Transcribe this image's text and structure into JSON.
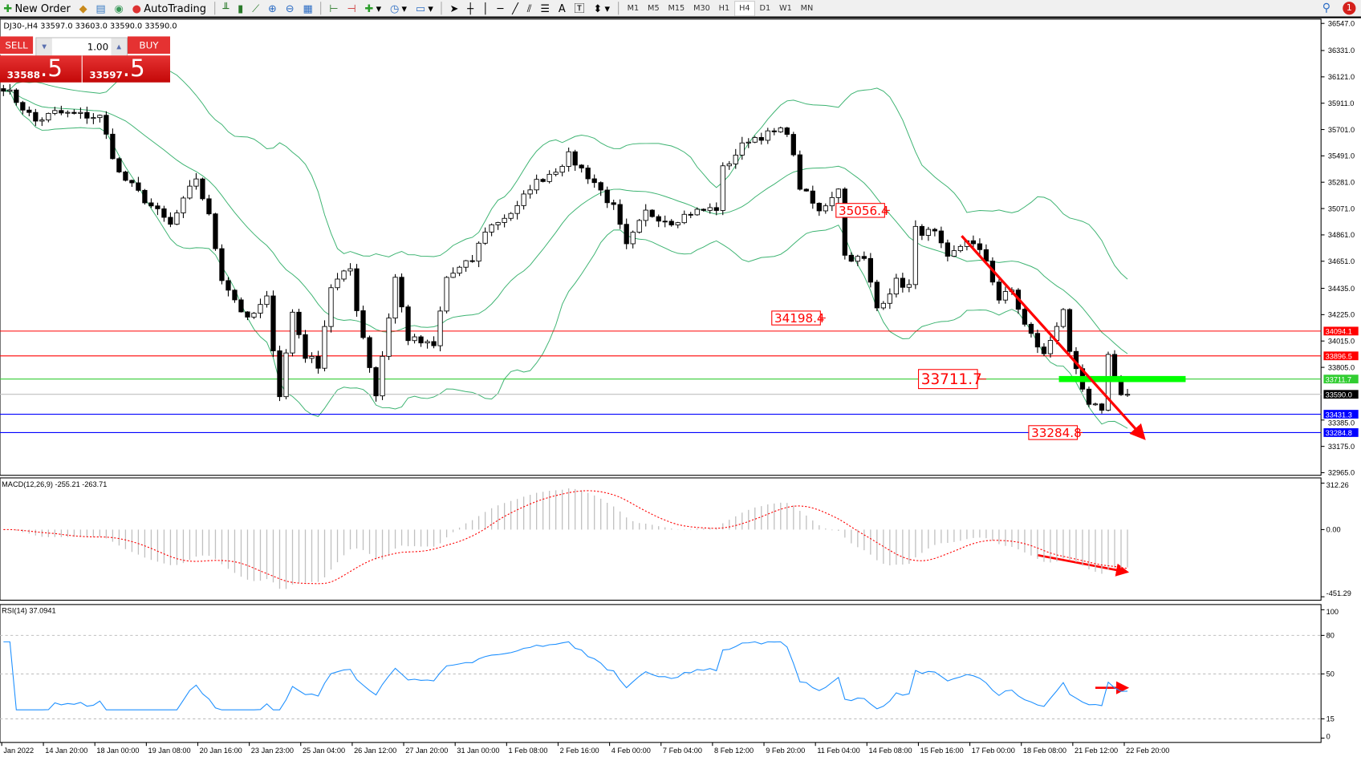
{
  "toolbar": {
    "new_order": "New Order",
    "autotrading": "AutoTrading",
    "timeframes": [
      "M1",
      "M5",
      "M15",
      "M30",
      "H1",
      "H4",
      "D1",
      "W1",
      "MN"
    ],
    "active_timeframe": "H4",
    "notification_count": "1"
  },
  "chart": {
    "info": "DJ30-,H4  33597.0 33603.0 33590.0 33590.0"
  },
  "trade_panel": {
    "sell_label": "SELL",
    "buy_label": "BUY",
    "lot": "1.00",
    "bid_main": "33588",
    "bid_frac": ".5",
    "ask_main": "33597",
    "ask_frac": ".5"
  },
  "price_axis": {
    "ticks": [
      "36547.0",
      "36331.0",
      "36121.0",
      "35911.0",
      "35701.0",
      "35491.0",
      "35281.0",
      "35071.0",
      "34861.0",
      "34651.0",
      "34435.0",
      "34225.0",
      "34015.0",
      "33805.0",
      "33385.0",
      "33175.0",
      "32965.0"
    ]
  },
  "hlines": [
    {
      "price": 34094.1,
      "label": "34094.1",
      "color": "#ff0000"
    },
    {
      "price": 33896.5,
      "label": "33896.5",
      "color": "#ff0000"
    },
    {
      "price": 33711.7,
      "label": "33711.7",
      "color": "#32cd32"
    },
    {
      "price": 33590.0,
      "label": "33590.0",
      "color": "#000000"
    },
    {
      "price": 33431.3,
      "label": "33431.3",
      "color": "#0000ff"
    },
    {
      "price": 33284.8,
      "label": "33284.8",
      "color": "#0000ff"
    }
  ],
  "annotations": [
    {
      "label": "35056.4",
      "price": 35056.4,
      "bar": 138
    },
    {
      "label": "34198.4",
      "price": 34198.4,
      "bar": 128
    },
    {
      "label": "33711.7",
      "price": 33711.7,
      "bar": 153
    },
    {
      "label": "33284.8",
      "price": 33284.8,
      "bar": 168
    }
  ],
  "time_axis": [
    "Jan 2022",
    "14 Jan 20:00",
    "18 Jan 00:00",
    "19 Jan 08:00",
    "20 Jan 16:00",
    "23 Jan 23:00",
    "25 Jan 04:00",
    "26 Jan 12:00",
    "27 Jan 20:00",
    "31 Jan 00:00",
    "1 Feb 08:00",
    "2 Feb 16:00",
    "4 Feb 00:00",
    "7 Feb 04:00",
    "8 Feb 12:00",
    "9 Feb 20:00",
    "11 Feb 04:00",
    "14 Feb 08:00",
    "15 Feb 16:00",
    "17 Feb 00:00",
    "18 Feb 08:00",
    "21 Feb 12:00",
    "22 Feb 20:00"
  ],
  "macd": {
    "label": "MACD(12,26,9) -255.21 -263.71",
    "ticks": [
      "312.26",
      "0.00",
      "-451.29"
    ],
    "max": 312.26,
    "min": -451.29
  },
  "rsi": {
    "label": "RSI(14) 37.0941",
    "ticks": [
      "100",
      "80",
      "50",
      "15",
      "0"
    ],
    "levels": [
      80,
      50,
      15
    ]
  },
  "colors": {
    "bands": "#3cb371",
    "signal": "#ff0000",
    "rsi": "#1e90ff",
    "histogram": "#c0c0c0",
    "arrow": "#ff0000",
    "zone": "#00ff00"
  },
  "chart_data": {
    "type": "candlestick",
    "symbol": "DJ30-",
    "timeframe": "H4",
    "ylim": [
      32965.0,
      36547.0
    ],
    "close_path": [
      [
        0,
        36042
      ],
      [
        5,
        35766
      ],
      [
        8,
        35835
      ],
      [
        15,
        35800
      ],
      [
        18,
        35350
      ],
      [
        22,
        35143
      ],
      [
        26,
        34936
      ],
      [
        30,
        35316
      ],
      [
        32,
        35005
      ],
      [
        34,
        34521
      ],
      [
        38,
        34175
      ],
      [
        41,
        34348
      ],
      [
        43,
        33587
      ],
      [
        45,
        34244
      ],
      [
        47,
        33898
      ],
      [
        49,
        33829
      ],
      [
        51,
        34451
      ],
      [
        54,
        34590
      ],
      [
        55,
        34280
      ],
      [
        58,
        33587
      ],
      [
        61,
        34521
      ],
      [
        63,
        34037
      ],
      [
        67,
        33968
      ],
      [
        69,
        34521
      ],
      [
        73,
        34659
      ],
      [
        75,
        34901
      ],
      [
        80,
        35074
      ],
      [
        82,
        35247
      ],
      [
        86,
        35385
      ],
      [
        88,
        35489
      ],
      [
        92,
        35281
      ],
      [
        95,
        35074
      ],
      [
        97,
        34763
      ],
      [
        100,
        35040
      ],
      [
        104,
        34970
      ],
      [
        107,
        35040
      ],
      [
        111,
        35074
      ],
      [
        112,
        35385
      ],
      [
        116,
        35627
      ],
      [
        122,
        35696
      ],
      [
        124,
        35247
      ],
      [
        127,
        35040
      ],
      [
        130,
        35247
      ],
      [
        131,
        34694
      ],
      [
        134,
        34659
      ],
      [
        136,
        34279
      ],
      [
        139,
        34486
      ],
      [
        141,
        34452
      ],
      [
        142,
        34901
      ],
      [
        145,
        34867
      ],
      [
        147,
        34659
      ],
      [
        150,
        34832
      ],
      [
        153,
        34659
      ],
      [
        155,
        34348
      ],
      [
        157,
        34417
      ],
      [
        159,
        34140
      ],
      [
        162,
        33898
      ],
      [
        165,
        34279
      ],
      [
        166,
        33898
      ],
      [
        169,
        33484
      ],
      [
        171,
        33484
      ],
      [
        172,
        33898
      ],
      [
        174,
        33587
      ],
      [
        175,
        33590
      ]
    ]
  }
}
